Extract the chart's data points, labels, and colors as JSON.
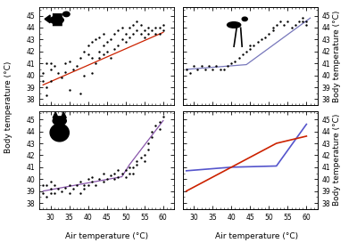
{
  "xlim": [
    27,
    63
  ],
  "ylim": [
    37.5,
    45.7
  ],
  "xticks": [
    30,
    35,
    40,
    45,
    50,
    55,
    60
  ],
  "yticks": [
    38,
    39,
    40,
    41,
    42,
    43,
    44,
    45
  ],
  "xlabel": "Air temperature (°C)",
  "ylabel": "Body temperature (°C)",
  "ylabel_right": "Body temperature (°C)",
  "scatter_tl": {
    "x": [
      28,
      28,
      29,
      29,
      29,
      30,
      30,
      30,
      31,
      32,
      33,
      34,
      34,
      35,
      35,
      36,
      37,
      38,
      38,
      39,
      39,
      40,
      40,
      41,
      41,
      41,
      42,
      42,
      43,
      43,
      43,
      44,
      44,
      44,
      45,
      45,
      46,
      46,
      47,
      47,
      48,
      48,
      49,
      49,
      50,
      50,
      51,
      51,
      52,
      52,
      53,
      53,
      54,
      54,
      55,
      55,
      56,
      56,
      57,
      58,
      58,
      59,
      59,
      60,
      60
    ],
    "y": [
      39.5,
      40.2,
      38.3,
      39.0,
      41.0,
      39.5,
      40.5,
      41.0,
      40.8,
      40.2,
      39.8,
      40.3,
      41.0,
      38.8,
      41.2,
      40.5,
      40.8,
      38.5,
      41.5,
      40.0,
      42.0,
      41.8,
      42.5,
      40.2,
      41.5,
      42.8,
      41.0,
      43.0,
      41.5,
      42.0,
      43.2,
      41.8,
      42.5,
      43.5,
      42.0,
      42.8,
      41.5,
      43.0,
      42.2,
      43.5,
      42.5,
      43.8,
      43.0,
      44.0,
      42.8,
      43.5,
      43.2,
      44.0,
      43.5,
      44.2,
      43.8,
      44.5,
      43.5,
      44.2,
      43.2,
      43.8,
      43.5,
      44.0,
      43.8,
      43.5,
      44.0,
      43.5,
      44.0,
      43.8,
      44.2
    ],
    "line_x": [
      28,
      60
    ],
    "line_y": [
      39.2,
      43.6
    ],
    "line_color": "#cc2200"
  },
  "scatter_tr": {
    "x": [
      28,
      29,
      30,
      31,
      32,
      33,
      34,
      35,
      36,
      37,
      38,
      39,
      40,
      41,
      42,
      43,
      44,
      45,
      45,
      46,
      47,
      48,
      49,
      50,
      51,
      51,
      52,
      53,
      54,
      55,
      56,
      57,
      58,
      59,
      59,
      60,
      60
    ],
    "y": [
      40.5,
      40.2,
      40.8,
      40.5,
      40.8,
      40.5,
      40.8,
      40.5,
      40.8,
      40.5,
      40.5,
      40.8,
      41.0,
      41.2,
      41.5,
      41.8,
      42.0,
      42.2,
      42.5,
      42.5,
      42.8,
      43.0,
      43.2,
      43.5,
      43.8,
      44.0,
      44.2,
      44.5,
      44.2,
      44.5,
      44.0,
      44.2,
      44.5,
      44.5,
      44.8,
      44.5,
      44.2
    ],
    "line_x": [
      28,
      44,
      61
    ],
    "line_y": [
      40.5,
      40.9,
      44.8
    ],
    "line_color": "#7777bb"
  },
  "scatter_bl": {
    "x": [
      28,
      28,
      29,
      29,
      30,
      30,
      30,
      31,
      31,
      32,
      33,
      34,
      35,
      35,
      36,
      37,
      38,
      38,
      39,
      39,
      40,
      40,
      41,
      41,
      42,
      43,
      44,
      44,
      45,
      46,
      47,
      47,
      48,
      48,
      49,
      50,
      50,
      51,
      51,
      52,
      52,
      53,
      53,
      54,
      55,
      55,
      56,
      56,
      57,
      57,
      58,
      59,
      59,
      60
    ],
    "y": [
      38.8,
      39.5,
      38.5,
      39.5,
      38.8,
      39.2,
      39.8,
      38.8,
      39.5,
      39.2,
      39.0,
      39.3,
      38.8,
      39.5,
      39.2,
      39.5,
      38.8,
      39.8,
      39.2,
      39.5,
      39.5,
      40.0,
      39.8,
      40.2,
      39.5,
      40.0,
      39.8,
      40.5,
      40.0,
      40.3,
      40.0,
      40.5,
      40.2,
      40.8,
      40.5,
      40.2,
      40.8,
      40.5,
      41.0,
      40.5,
      41.0,
      41.2,
      41.5,
      41.8,
      41.5,
      42.0,
      42.5,
      43.0,
      43.5,
      44.0,
      44.5,
      44.2,
      44.8,
      45.2
    ],
    "line_x": [
      28,
      49,
      51,
      60
    ],
    "line_y": [
      39.0,
      40.2,
      41.2,
      44.9
    ],
    "line_color": "#8855aa"
  },
  "lines_br": {
    "blue_x": [
      28,
      40,
      52,
      60
    ],
    "blue_y": [
      40.7,
      41.0,
      41.1,
      44.6
    ],
    "red_x": [
      28,
      52,
      60
    ],
    "red_y": [
      39.0,
      43.0,
      43.6
    ],
    "blue_color": "#5555cc",
    "red_color": "#cc2200"
  },
  "background_color": "#ffffff",
  "tick_fontsize": 5.5,
  "label_fontsize": 6.5
}
